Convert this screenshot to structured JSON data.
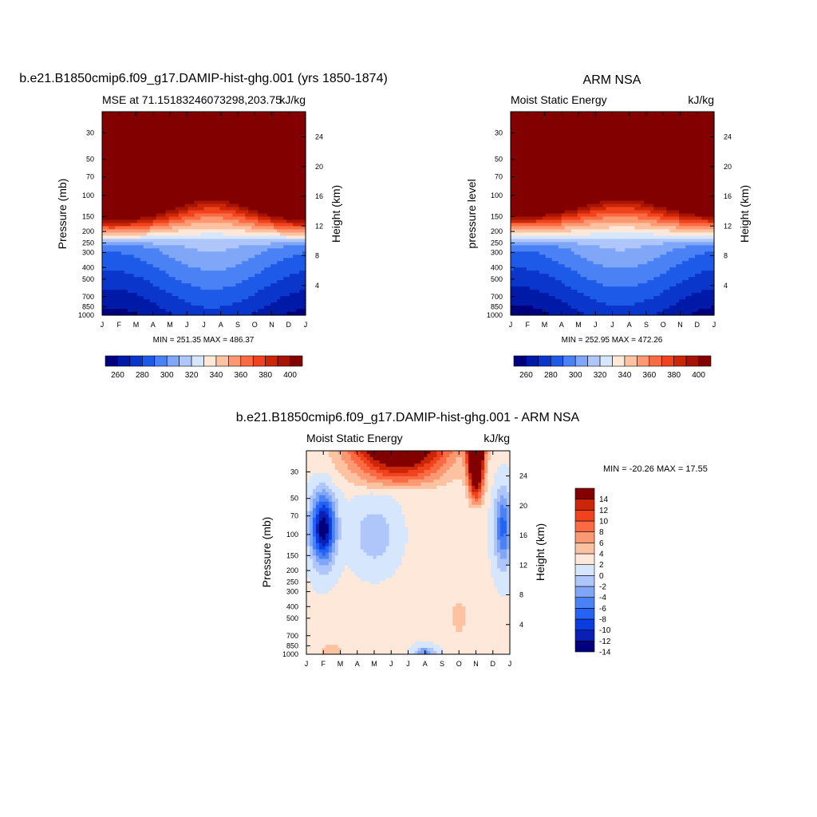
{
  "palette": {
    "mse": [
      "#00007f",
      "#001aa8",
      "#0a36cc",
      "#1e5ae8",
      "#4a82f5",
      "#80a6f7",
      "#aec6fa",
      "#d6e6fd",
      "#fee8da",
      "#fdc2a2",
      "#fc9872",
      "#fb6b43",
      "#f0421d",
      "#cc2608",
      "#a51405",
      "#820000"
    ],
    "diff": [
      "#00007f",
      "#0a1fb3",
      "#0a3de0",
      "#2563f5",
      "#4a82f5",
      "#80a6f7",
      "#aec6fa",
      "#d6e6fd",
      "#fee8da",
      "#fdc2a2",
      "#fc9872",
      "#fb6b43",
      "#f0421d",
      "#cc2608",
      "#820000"
    ]
  },
  "chart_data": [
    {
      "type": "heatmap",
      "title": "b.e21.B1850cmip6.f09_g17.DAMIP-hist-ghg.001 (yrs 1850-1874)",
      "left_string": "MSE at 71.15183246073298,203.75",
      "right_string": "kJ/kg",
      "ylabel": "Pressure (mb)",
      "y2label": "Height (km)",
      "x_ticks": [
        "J",
        "F",
        "M",
        "A",
        "M",
        "J",
        "J",
        "A",
        "S",
        "O",
        "N",
        "D",
        "J"
      ],
      "y_ticks": [
        "30",
        "50",
        "70",
        "100",
        "150",
        "200",
        "250",
        "300",
        "400",
        "500",
        "700",
        "850",
        "1000"
      ],
      "y2_ticks": [
        "24",
        "20",
        "16",
        "12",
        "8",
        "4"
      ],
      "stats": "MIN = 251.35 MAX = 486.37",
      "min": 251.35,
      "max": 486.37,
      "colorbar_labels": [
        "260",
        "280",
        "300",
        "320",
        "340",
        "360",
        "380",
        "400"
      ],
      "ylim": [
        1000,
        20
      ]
    },
    {
      "type": "heatmap",
      "title": "ARM NSA",
      "left_string": "Moist Static Energy",
      "right_string": "kJ/kg",
      "ylabel": "pressure level",
      "y2label": "Height (km)",
      "x_ticks": [
        "J",
        "F",
        "M",
        "A",
        "M",
        "J",
        "J",
        "A",
        "S",
        "O",
        "N",
        "D",
        "J"
      ],
      "y_ticks": [
        "30",
        "50",
        "70",
        "100",
        "150",
        "200",
        "250",
        "300",
        "400",
        "500",
        "700",
        "850",
        "1000"
      ],
      "y2_ticks": [
        "24",
        "20",
        "16",
        "12",
        "8",
        "4"
      ],
      "stats": "MIN = 252.95 MAX = 472.26",
      "min": 252.95,
      "max": 472.26,
      "colorbar_labels": [
        "260",
        "280",
        "300",
        "320",
        "340",
        "360",
        "380",
        "400"
      ],
      "ylim": [
        1000,
        20
      ]
    },
    {
      "type": "heatmap",
      "title": "b.e21.B1850cmip6.f09_g17.DAMIP-hist-ghg.001 - ARM NSA",
      "left_string": "Moist Static Energy",
      "right_string": "kJ/kg",
      "ylabel": "Pressure (mb)",
      "y2label": "Height (km)",
      "x_ticks": [
        "J",
        "F",
        "M",
        "A",
        "M",
        "J",
        "J",
        "A",
        "S",
        "O",
        "N",
        "D",
        "J"
      ],
      "y_ticks": [
        "30",
        "50",
        "70",
        "100",
        "150",
        "200",
        "250",
        "300",
        "400",
        "500",
        "700",
        "850",
        "1000"
      ],
      "y2_ticks": [
        "24",
        "20",
        "16",
        "12",
        "8",
        "4"
      ],
      "stats": "MIN = -20.26 MAX =  17.55",
      "min": -20.26,
      "max": 17.55,
      "colorbar_labels": [
        "14",
        "12",
        "10",
        "8",
        "6",
        "4",
        "2",
        "0",
        "-2",
        "-4",
        "-6",
        "-8",
        "-10",
        "-12",
        "-14"
      ],
      "ylim": [
        1000,
        20
      ]
    }
  ]
}
